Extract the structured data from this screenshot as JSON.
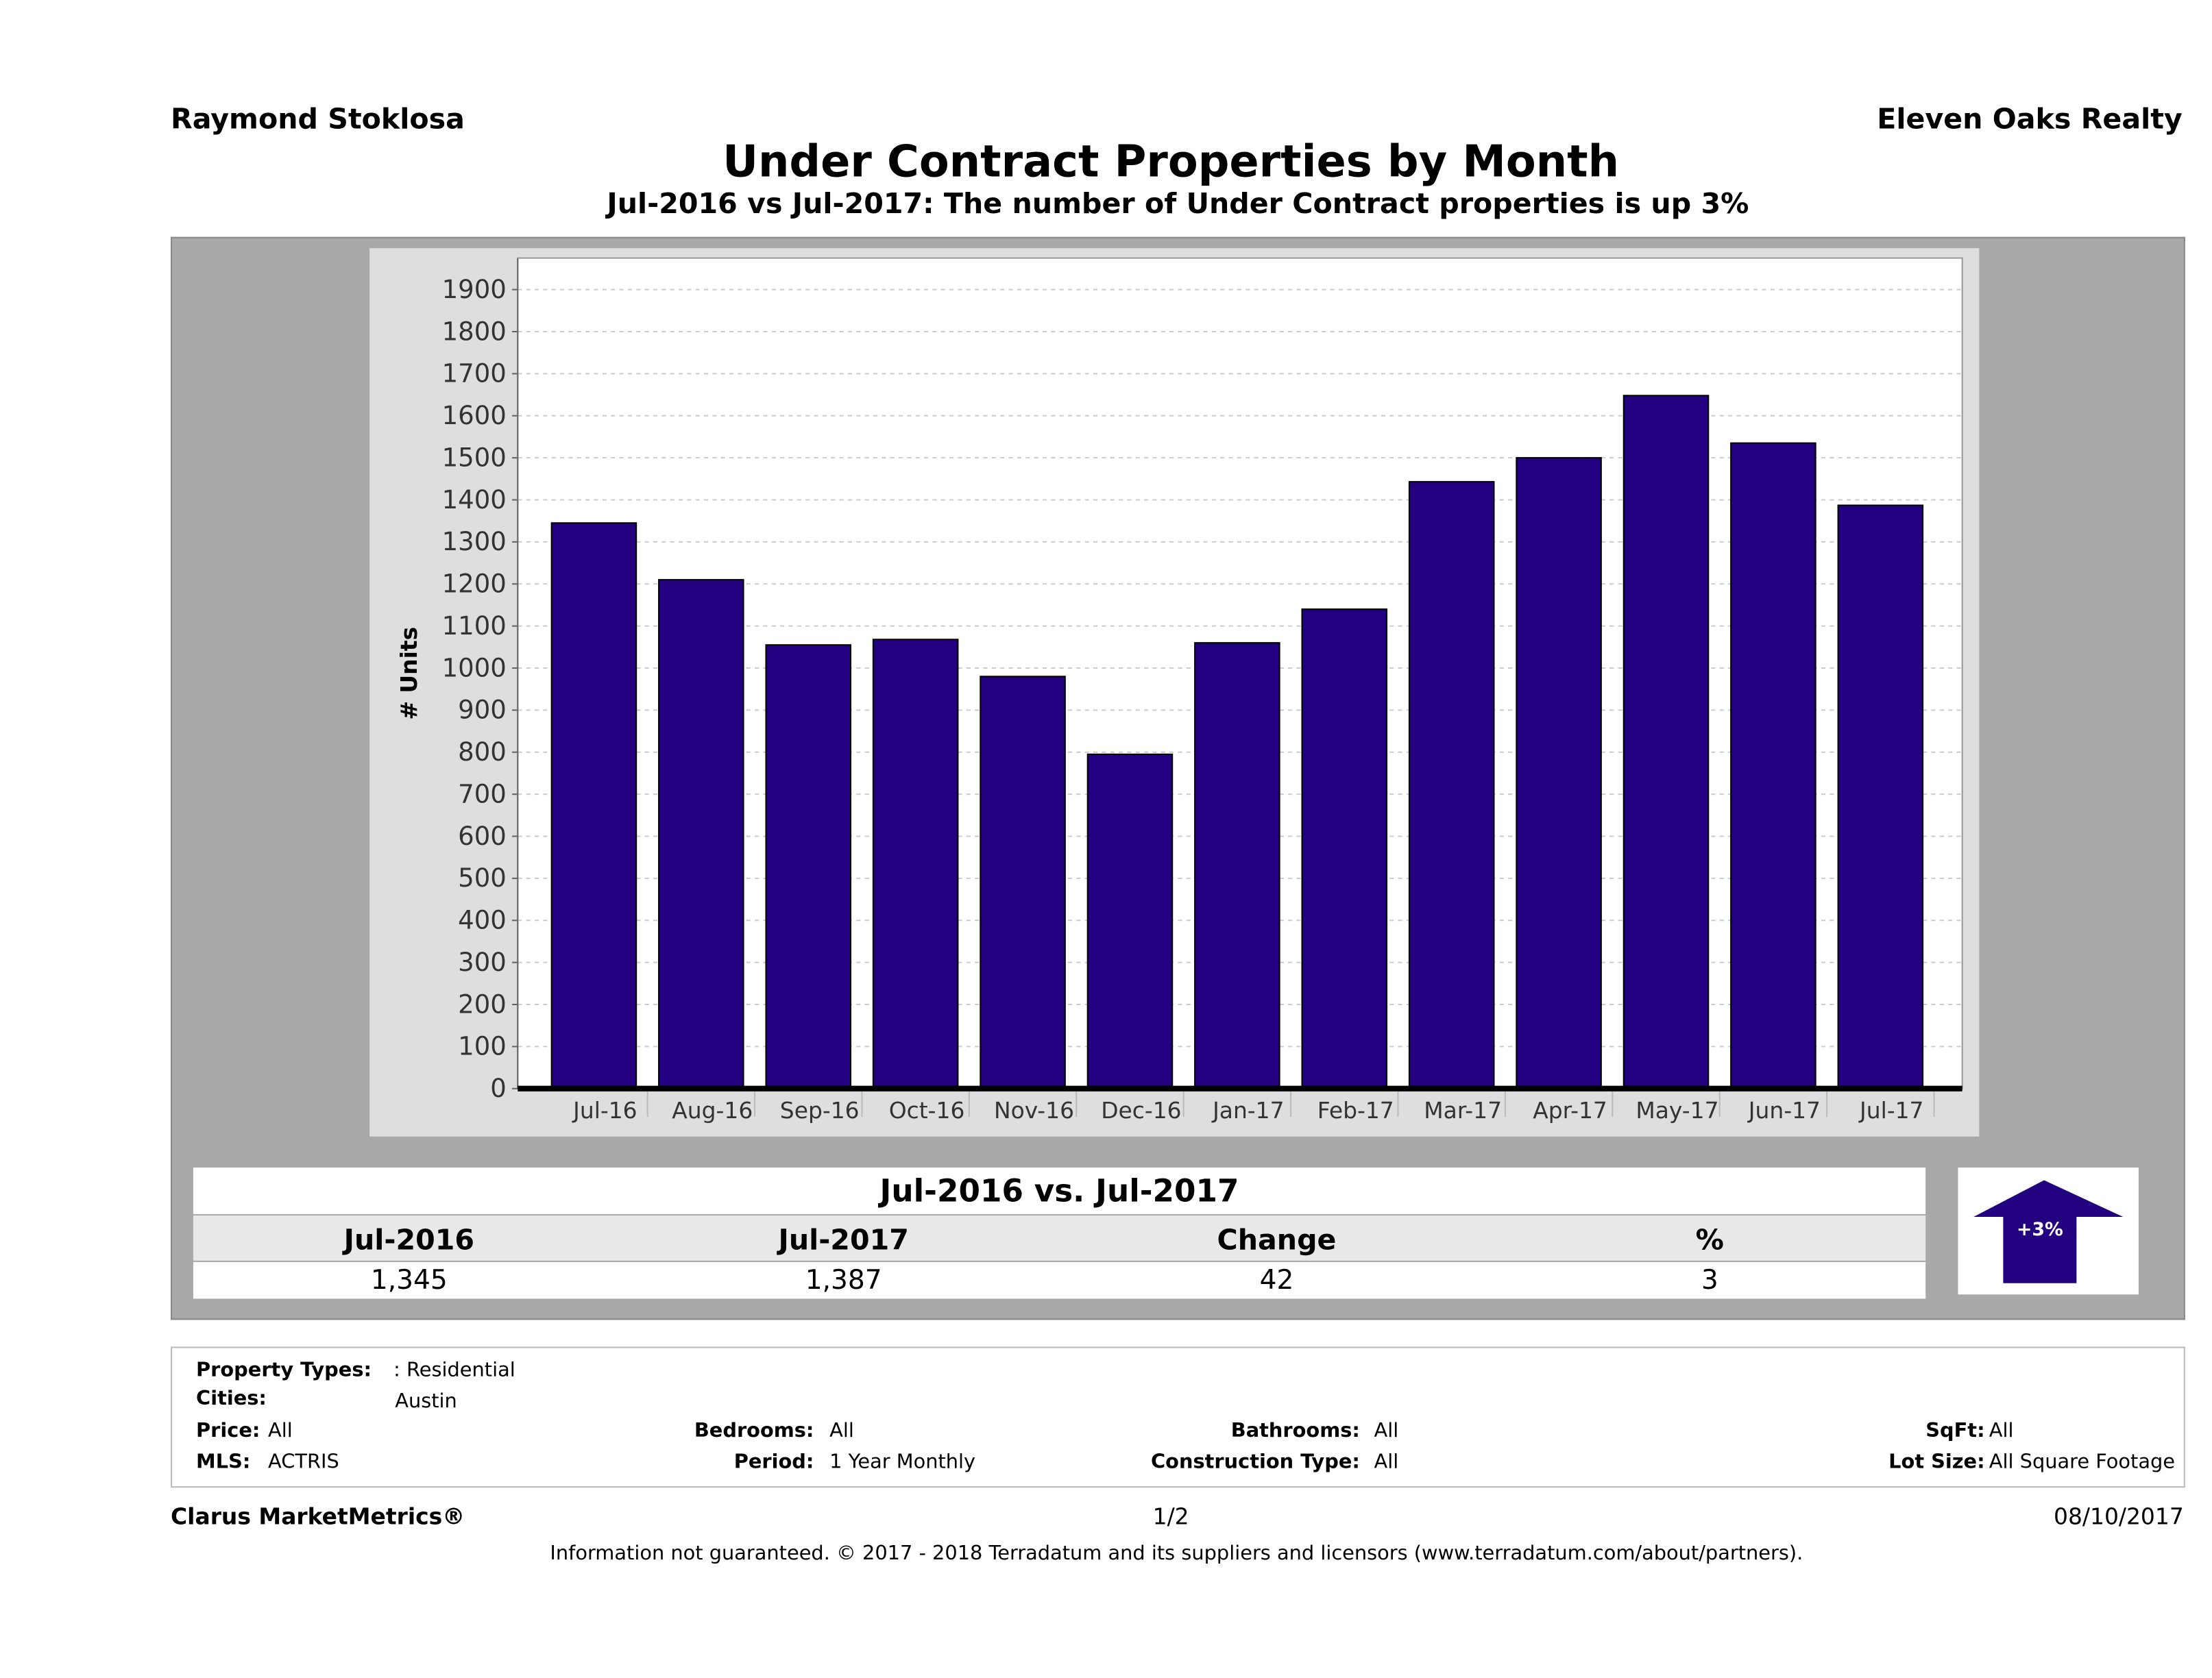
{
  "header": {
    "agent": "Raymond Stoklosa",
    "brokerage": "Eleven Oaks Realty",
    "title": "Under Contract Properties by Month",
    "subtitle": "Jul-2016 vs Jul-2017: The number of Under Contract  properties is up 3%"
  },
  "chart_data": {
    "type": "bar",
    "categories": [
      "Jul-16",
      "Aug-16",
      "Sep-16",
      "Oct-16",
      "Nov-16",
      "Dec-16",
      "Jan-17",
      "Feb-17",
      "Mar-17",
      "Apr-17",
      "May-17",
      "Jun-17",
      "Jul-17"
    ],
    "values": [
      1345,
      1210,
      1055,
      1068,
      980,
      795,
      1060,
      1140,
      1443,
      1500,
      1648,
      1535,
      1387
    ],
    "ylabel": "# Units",
    "yticks": [
      0,
      100,
      200,
      300,
      400,
      500,
      600,
      700,
      800,
      900,
      1000,
      1100,
      1200,
      1300,
      1400,
      1500,
      1600,
      1700,
      1800,
      1900
    ],
    "ylim": [
      0,
      1975
    ],
    "grid": true,
    "bar_color": "#230080"
  },
  "summary": {
    "heading": "Jul-2016 vs. Jul-2017",
    "columns": [
      "Jul-2016",
      "Jul-2017",
      "Change",
      "%"
    ],
    "values": [
      "1,345",
      "1,387",
      "42",
      "3"
    ],
    "badge": "+3%",
    "badge_icon": "up-arrow-icon"
  },
  "details": {
    "property_types_label": "Property Types:",
    "property_types": ": Residential",
    "cities_label": "Cities:",
    "cities": "Austin",
    "price_label": "Price:",
    "price": "All",
    "bedrooms_label": "Bedrooms:",
    "bedrooms": "All",
    "bathrooms_label": "Bathrooms:",
    "bathrooms": "All",
    "sqft_label": "SqFt:",
    "sqft": "All",
    "mls_label": "MLS:",
    "mls": "ACTRIS",
    "period_label": "Period:",
    "period": "1 Year Monthly",
    "construction_label": "Construction Type:",
    "construction": "All",
    "lot_label": "Lot Size:",
    "lot": "All Square Footage"
  },
  "footer": {
    "product": "Clarus MarketMetrics®",
    "page": "1/2",
    "date": "08/10/2017",
    "disclaimer": "Information not guaranteed. © 2017 - 2018 Terradatum and its suppliers and licensors (www.terradatum.com/about/partners)."
  }
}
